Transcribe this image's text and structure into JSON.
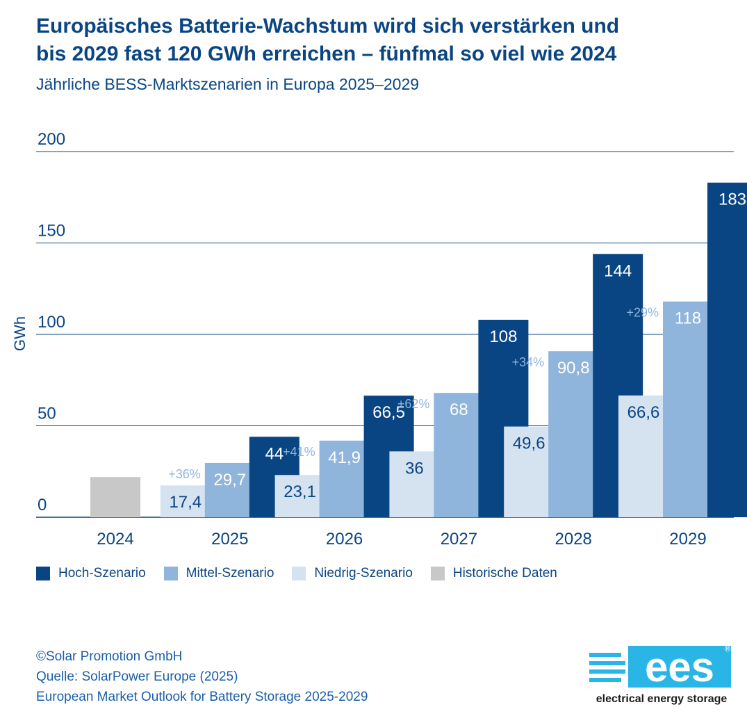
{
  "title_line1": "Europäisches Batterie-Wachstum wird sich verstärken und",
  "title_line2": "bis 2029 fast 120 GWh erreichen – fünfmal so viel wie 2024",
  "subtitle": "Jährliche BESS-Marktszenarien in Europa 2025–2029",
  "chart_data": {
    "type": "bar",
    "ylabel": "GWh",
    "ylim": [
      0,
      200
    ],
    "yticks": [
      "0",
      "50",
      "100",
      "150",
      "200"
    ],
    "ytick_values": [
      0,
      50,
      100,
      150,
      200
    ],
    "grid": true,
    "categories": [
      "2024",
      "2025",
      "2026",
      "2027",
      "2028",
      "2029"
    ],
    "series": [
      {
        "name": "Niedrig-Szenario",
        "color": "#d5e2f0",
        "label_color": "#0a4583",
        "values": [
          null,
          17.4,
          23.1,
          36,
          49.6,
          66.6
        ],
        "labels": [
          "",
          "17,4",
          "23,1",
          "36",
          "49,6",
          "66,6"
        ]
      },
      {
        "name": "Mittel-Szenario",
        "color": "#8fb5dc",
        "label_color": "#ffffff",
        "values": [
          null,
          29.7,
          41.9,
          68,
          90.8,
          118
        ],
        "labels": [
          "",
          "29,7",
          "41,9",
          "68",
          "90,8",
          "118"
        ]
      },
      {
        "name": "Hoch-Szenario",
        "color": "#0a4583",
        "label_color": "#ffffff",
        "values": [
          null,
          44,
          66.5,
          108,
          144,
          183
        ],
        "labels": [
          "",
          "44",
          "66,5",
          "108",
          "144",
          "183"
        ]
      },
      {
        "name": "Historische Daten",
        "color": "#c8c8c8",
        "values": [
          22,
          null,
          null,
          null,
          null,
          null
        ]
      }
    ],
    "growth_labels": [
      "",
      "+36%",
      "+41%",
      "+62%",
      "+34%",
      "+29%"
    ],
    "growth_color": "#8fb5dc",
    "axis_color": "#0a4583"
  },
  "legend": [
    {
      "label": "Hoch-Szenario",
      "color": "#0a4583"
    },
    {
      "label": "Mittel-Szenario",
      "color": "#8fb5dc"
    },
    {
      "label": "Niedrig-Szenario",
      "color": "#d5e2f0"
    },
    {
      "label": "Historische Daten",
      "color": "#c8c8c8"
    }
  ],
  "footer": {
    "copyright": "©Solar Promotion GmbH",
    "source": "Quelle: SolarPower Europe (2025)",
    "publication": "European Market Outlook for Battery Storage 2025-2029"
  },
  "logo": {
    "text": "ees",
    "registered": "®",
    "tagline": "electrical energy storage",
    "color": "#29b6e6"
  }
}
